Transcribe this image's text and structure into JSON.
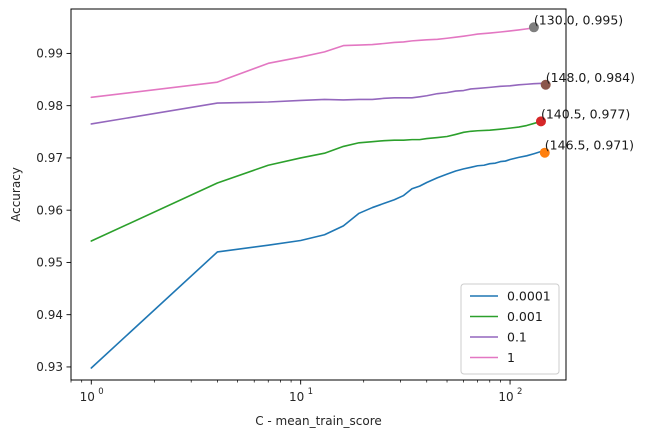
{
  "chart_data": {
    "type": "line",
    "title": "",
    "xlabel": "C - mean_train_score",
    "ylabel": "Accuracy",
    "xscale": "log",
    "xlim": [
      0.8,
      185
    ],
    "ylim": [
      0.9275,
      0.9985
    ],
    "xticks": [
      {
        "value": 1,
        "label": "10",
        "exp": "0"
      },
      {
        "value": 10,
        "label": "10",
        "exp": "1"
      },
      {
        "value": 100,
        "label": "10",
        "exp": "2"
      }
    ],
    "yticks": [
      0.93,
      0.94,
      0.95,
      0.96,
      0.97,
      0.98,
      0.99
    ],
    "grid": false,
    "legend_position": "lower-right",
    "series": [
      {
        "name": "0.0001",
        "color": "#1f77b4",
        "x": [
          1,
          4,
          7,
          10,
          13,
          16,
          19,
          22,
          25,
          28,
          31,
          34,
          37,
          40,
          45,
          50,
          55,
          60,
          65,
          70,
          75,
          80,
          85,
          90,
          95,
          100,
          110,
          120,
          130,
          140,
          146.5
        ],
        "y": [
          0.9298,
          0.952,
          0.9533,
          0.9542,
          0.9553,
          0.957,
          0.9594,
          0.9605,
          0.9613,
          0.962,
          0.9628,
          0.9641,
          0.9646,
          0.9653,
          0.9662,
          0.9669,
          0.9675,
          0.9679,
          0.9682,
          0.9685,
          0.9686,
          0.9689,
          0.969,
          0.9693,
          0.9694,
          0.9697,
          0.9701,
          0.9704,
          0.9708,
          0.9712,
          0.9714
        ]
      },
      {
        "name": "0.001",
        "color": "#2ca02c",
        "x": [
          1,
          4,
          7,
          10,
          13,
          16,
          19,
          22,
          25,
          28,
          31,
          34,
          37,
          40,
          45,
          50,
          55,
          60,
          65,
          70,
          80,
          90,
          100,
          110,
          120,
          130,
          140.5
        ],
        "y": [
          0.9541,
          0.9652,
          0.9686,
          0.97,
          0.9709,
          0.9722,
          0.9729,
          0.9731,
          0.9733,
          0.9734,
          0.9734,
          0.9735,
          0.9735,
          0.9737,
          0.9739,
          0.9741,
          0.9745,
          0.9749,
          0.9751,
          0.9752,
          0.9753,
          0.9755,
          0.9757,
          0.9759,
          0.9762,
          0.9766,
          0.977
        ]
      },
      {
        "name": "0.1",
        "color": "#9467bd",
        "x": [
          1,
          4,
          7,
          10,
          13,
          16,
          19,
          22,
          25,
          28,
          31,
          34,
          37,
          40,
          45,
          50,
          55,
          60,
          65,
          70,
          80,
          90,
          100,
          110,
          120,
          130,
          148
        ],
        "y": [
          0.9765,
          0.9805,
          0.9807,
          0.981,
          0.9812,
          0.9811,
          0.9812,
          0.9812,
          0.9814,
          0.9815,
          0.9815,
          0.9815,
          0.9817,
          0.9819,
          0.9823,
          0.9825,
          0.9828,
          0.9829,
          0.9832,
          0.9833,
          0.9835,
          0.9837,
          0.9838,
          0.984,
          0.9841,
          0.9842,
          0.9843
        ]
      },
      {
        "name": "1",
        "color": "#e377c2",
        "x": [
          1,
          4,
          7,
          10,
          13,
          16,
          19,
          22,
          25,
          28,
          31,
          34,
          37,
          40,
          45,
          50,
          55,
          60,
          65,
          70,
          80,
          90,
          100,
          110,
          120,
          130
        ],
        "y": [
          0.9816,
          0.9845,
          0.9881,
          0.9893,
          0.9903,
          0.9915,
          0.9916,
          0.9917,
          0.9919,
          0.9921,
          0.9922,
          0.9924,
          0.9925,
          0.9926,
          0.9927,
          0.9929,
          0.9931,
          0.9933,
          0.9935,
          0.9937,
          0.9939,
          0.9941,
          0.9943,
          0.9945,
          0.9947,
          0.9949
        ]
      }
    ],
    "annotations": [
      {
        "x": 130,
        "y": 0.995,
        "text": "(130.0, 0.995)",
        "marker_color": "#7f7f7f"
      },
      {
        "x": 148,
        "y": 0.984,
        "text": "(148.0, 0.984)",
        "marker_color": "#8c564b"
      },
      {
        "x": 140.5,
        "y": 0.977,
        "text": "(140.5, 0.977)",
        "marker_color": "#d62728"
      },
      {
        "x": 146.5,
        "y": 0.971,
        "text": "(146.5, 0.971)",
        "marker_color": "#ff7f0e"
      }
    ]
  }
}
